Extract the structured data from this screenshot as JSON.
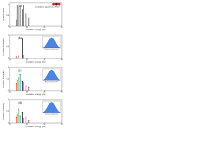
{
  "chart_data": [
    {
      "type": "bar",
      "label": "(a)",
      "title": "Ionization Spectrum of CO₂⁺",
      "x_label": "Ionization energy (eV)",
      "y_label": "Ionization Rate",
      "x": [
        13.8,
        14.4,
        15.2,
        16.0,
        17.3,
        18.1,
        19.4,
        21.0
      ],
      "values": [
        0.3,
        1.0,
        0.9,
        1.0,
        0.8,
        1.0,
        0.6,
        0.4
      ],
      "color": "#555555",
      "xlim": [
        10,
        40
      ],
      "ylim": [
        0,
        1.1
      ],
      "xticks": [
        10,
        20,
        30,
        40
      ],
      "yticks": [
        0,
        0.5,
        1
      ]
    },
    {
      "type": "bar",
      "label": "(b)",
      "x_label": "Ionization energy (eV)",
      "y_label": "Ionization Probability",
      "x": [
        13.8,
        15.2,
        17.3,
        18.1
      ],
      "values": [
        0.08,
        0.1,
        0.85,
        0.12
      ],
      "colors": [
        "#d62728",
        "#2ca02c",
        "#222222",
        "#9467bd"
      ],
      "xlim": [
        10,
        40
      ],
      "ylim": [
        0,
        1
      ],
      "xticks": [
        10,
        20,
        30,
        40
      ],
      "yticks": [
        0,
        0.5,
        1
      ],
      "inset": {
        "x_label": "Photon energy (eV)",
        "x": [
          16,
          16.5,
          17,
          17.5,
          18,
          18.5,
          19,
          19.5,
          20
        ],
        "values": [
          0.02,
          0.15,
          0.5,
          0.88,
          1.0,
          0.88,
          0.5,
          0.15,
          0.02
        ],
        "color": "#2e6fd8",
        "xlim": [
          16,
          20
        ],
        "ylim": [
          0,
          1.1
        ]
      }
    },
    {
      "type": "bar",
      "label": "(c)",
      "x_label": "Ionization energy (eV)",
      "y_label": "Ionization Probability",
      "x": [
        13.8,
        14.4,
        15.2,
        16.0,
        17.3,
        18.1,
        19.4,
        21.0
      ],
      "values": [
        0.3,
        0.45,
        0.55,
        0.7,
        0.4,
        0.35,
        0.2,
        0.15
      ],
      "colors": [
        "#d62728",
        "#ff7f0e",
        "#2ca02c",
        "#1f77b4",
        "#222222",
        "#9467bd",
        "#e377c2",
        "#8c564b"
      ],
      "xlim": [
        10,
        40
      ],
      "ylim": [
        0,
        1
      ],
      "xticks": [
        10,
        20,
        30,
        40
      ],
      "yticks": [
        0,
        0.5,
        1
      ],
      "inset": {
        "x_label": "Photon energy (eV)",
        "x": [
          20,
          20.5,
          21,
          21.5,
          22,
          22.5,
          23,
          23.5,
          24
        ],
        "values": [
          0.02,
          0.15,
          0.5,
          0.88,
          1.0,
          0.88,
          0.5,
          0.15,
          0.02
        ],
        "color": "#2e6fd8",
        "xlim": [
          20,
          24
        ],
        "ylim": [
          0,
          1.1
        ]
      }
    },
    {
      "type": "bar",
      "label": "(d)",
      "x_label": "Ionization energy (eV)",
      "y_label": "Ionization Probability",
      "x": [
        13.8,
        14.4,
        15.2,
        16.0,
        17.3,
        18.1,
        19.4,
        21.0
      ],
      "values": [
        0.25,
        0.35,
        0.6,
        0.3,
        0.45,
        0.2,
        0.25,
        0.1
      ],
      "colors": [
        "#d62728",
        "#ff7f0e",
        "#2ca02c",
        "#1f77b4",
        "#222222",
        "#9467bd",
        "#e377c2",
        "#8c564b"
      ],
      "xlim": [
        10,
        40
      ],
      "ylim": [
        0,
        1
      ],
      "xticks": [
        10,
        20,
        30,
        40
      ],
      "yticks": [
        0,
        0.5,
        1
      ],
      "inset": {
        "x_label": "Photon energy (eV)",
        "x": [
          24,
          24.5,
          25,
          25.5,
          26,
          26.5,
          27,
          27.5,
          28
        ],
        "values": [
          0.02,
          0.15,
          0.5,
          0.88,
          1.0,
          0.88,
          0.5,
          0.15,
          0.02
        ],
        "color": "#2e6fd8",
        "xlim": [
          24,
          28
        ],
        "ylim": [
          0,
          1.1
        ]
      }
    }
  ]
}
